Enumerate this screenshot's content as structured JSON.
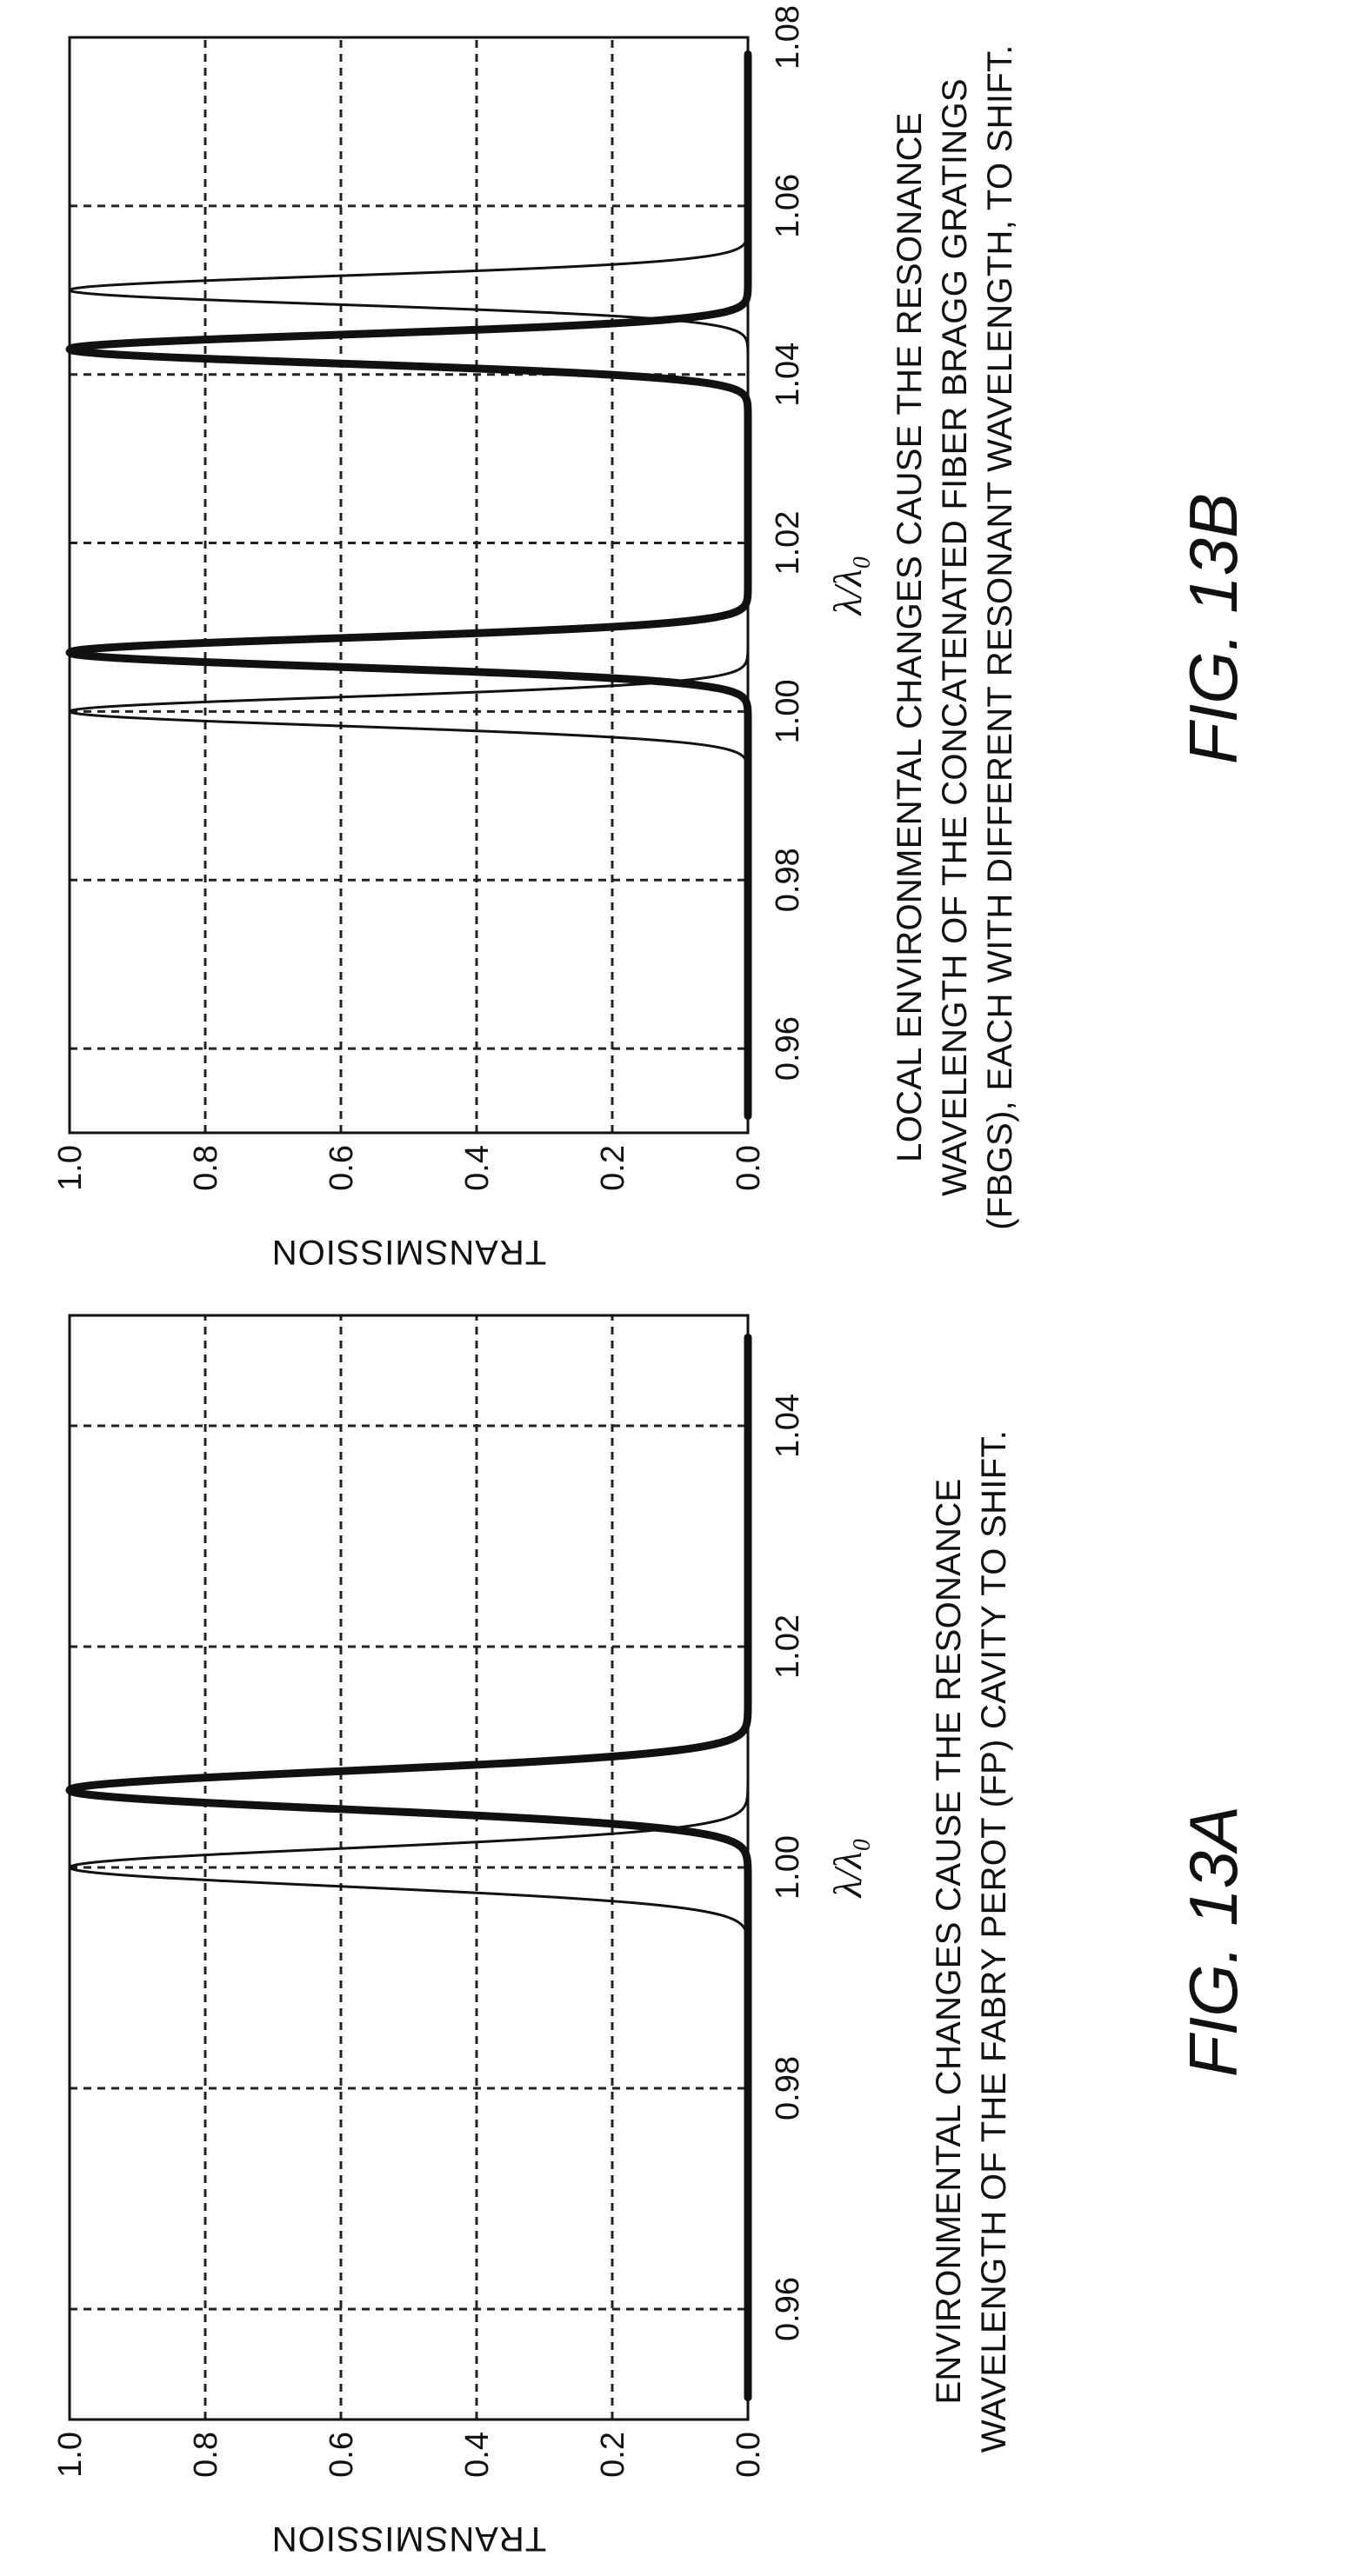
{
  "chart_data": [
    {
      "type": "line",
      "ylabel": "TRANSMISSION",
      "xlabel": "λ/λ₀",
      "xlim": [
        0.95,
        1.05
      ],
      "ylim": [
        0,
        1
      ],
      "xticks": [
        "0.96",
        "0.98",
        "1.00",
        "1.02",
        "1.04"
      ],
      "yticks": [
        "0.0",
        "0.2",
        "0.4",
        "0.6",
        "0.8",
        "1.0"
      ],
      "grid": true,
      "series": [
        {
          "style": "thin",
          "peaks": [
            {
              "center": 1.0,
              "fwhm": 0.004
            }
          ]
        },
        {
          "style": "thick",
          "peaks": [
            {
              "center": 1.007,
              "fwhm": 0.004
            }
          ]
        }
      ],
      "caption": "ENVIRONMENTAL CHANGES CAUSE THE RESONANCE WAVELENGTH OF THE FABRY PEROT (FP) CAVITY TO SHIFT.",
      "fig_label": "FIG. 13A"
    },
    {
      "type": "line",
      "ylabel": "TRANSMISSION",
      "xlabel": "λ/λ₀",
      "xlim": [
        0.95,
        1.08
      ],
      "ylim": [
        0,
        1
      ],
      "xticks": [
        "0.96",
        "0.98",
        "1.00",
        "1.02",
        "1.04",
        "1.06",
        "1.08"
      ],
      "yticks": [
        "0.0",
        "0.2",
        "0.4",
        "0.6",
        "0.8",
        "1.0"
      ],
      "grid": true,
      "series": [
        {
          "style": "thin",
          "peaks": [
            {
              "center": 1.0,
              "fwhm": 0.004
            },
            {
              "center": 1.05,
              "fwhm": 0.004
            }
          ]
        },
        {
          "style": "thick",
          "peaks": [
            {
              "center": 1.007,
              "fwhm": 0.004
            },
            {
              "center": 1.043,
              "fwhm": 0.004
            }
          ]
        }
      ],
      "caption": "LOCAL ENVIRONMENTAL CHANGES CAUSE THE RESONANCE WAVELENGTH OF THE CONCATENATED FIBER BRAGG GRATINGS (FBGS), EACH WITH DIFFERENT RESONANT WAVELENGTH, TO SHIFT.",
      "fig_label": "FIG. 13B"
    }
  ]
}
